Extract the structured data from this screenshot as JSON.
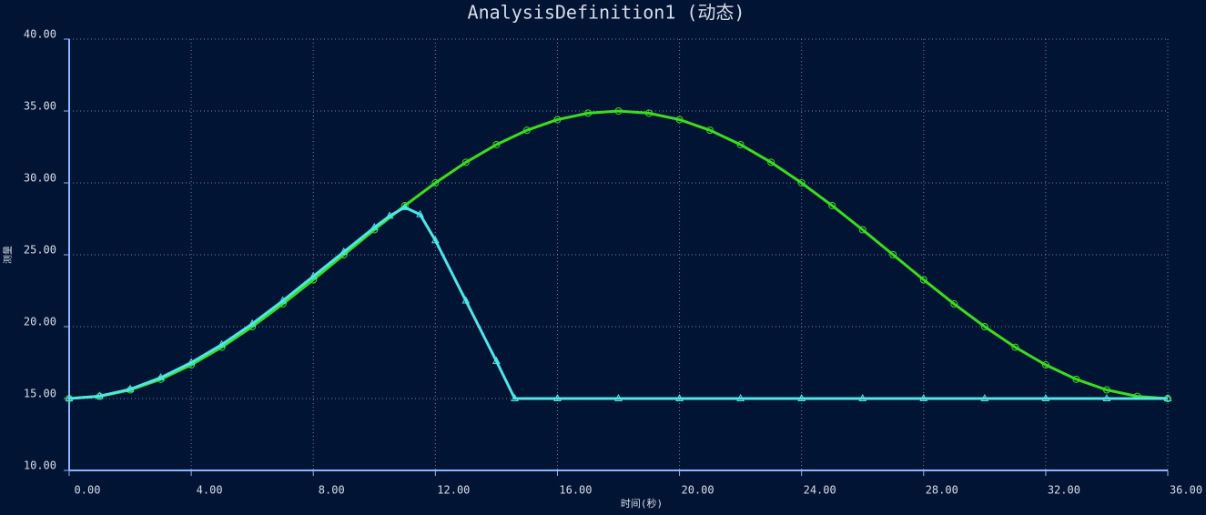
{
  "chart_data": {
    "type": "line",
    "title": "AnalysisDefinition1 (动态)",
    "x_label": "时间(秒)",
    "y_label": "测量",
    "xlim": [
      0,
      36
    ],
    "ylim": [
      10,
      40
    ],
    "xticks": [
      {
        "value": 0,
        "label": "0.00"
      },
      {
        "value": 4,
        "label": "4.00"
      },
      {
        "value": 8,
        "label": "8.00"
      },
      {
        "value": 12,
        "label": "12.00"
      },
      {
        "value": 16,
        "label": "16.00"
      },
      {
        "value": 20,
        "label": "20.00"
      },
      {
        "value": 24,
        "label": "24.00"
      },
      {
        "value": 28,
        "label": "28.00"
      },
      {
        "value": 32,
        "label": "32.00"
      },
      {
        "value": 36,
        "label": "36.00"
      }
    ],
    "yticks": [
      {
        "value": 10,
        "label": "10.00"
      },
      {
        "value": 15,
        "label": "15.00"
      },
      {
        "value": 20,
        "label": "20.00"
      },
      {
        "value": 25,
        "label": "25.00"
      },
      {
        "value": 30,
        "label": "30.00"
      },
      {
        "value": 35,
        "label": "35.00"
      },
      {
        "value": 40,
        "label": "40.00"
      }
    ],
    "grid": true,
    "series": [
      {
        "color": "#3ddc1e",
        "marker": "circle",
        "x": [
          0,
          1,
          2,
          3,
          4,
          5,
          6,
          7,
          8,
          9,
          10,
          11,
          12,
          13,
          14,
          15,
          16,
          17,
          18,
          19,
          20,
          21,
          22,
          23,
          24,
          25,
          26,
          27,
          28,
          29,
          30,
          31,
          32,
          33,
          34,
          35,
          36
        ],
        "values": [
          15,
          15.15,
          15.6,
          16.34,
          17.34,
          18.57,
          20,
          21.58,
          23.26,
          25,
          26.74,
          28.42,
          30,
          31.43,
          32.66,
          33.66,
          34.4,
          34.85,
          35,
          34.85,
          34.4,
          33.66,
          32.66,
          31.43,
          30,
          28.42,
          26.74,
          25,
          23.26,
          21.58,
          20,
          18.57,
          17.34,
          16.34,
          15.6,
          15.15,
          15
        ]
      },
      {
        "color": "#4fe6ea",
        "marker": "triangle",
        "x": [
          0,
          1,
          2,
          3,
          4,
          5,
          6,
          7,
          8,
          9,
          10,
          10.5,
          11,
          11.5,
          12,
          13,
          14,
          14.6,
          16,
          18,
          20,
          22,
          24,
          26,
          28,
          30,
          32,
          34,
          36
        ],
        "values": [
          15,
          15.17,
          15.65,
          16.45,
          17.5,
          18.75,
          20.2,
          21.8,
          23.5,
          25.2,
          26.9,
          27.7,
          28.3,
          27.8,
          26,
          21.8,
          17.6,
          15,
          15,
          15,
          15,
          15,
          15,
          15,
          15,
          15,
          15,
          15,
          15
        ]
      }
    ]
  }
}
